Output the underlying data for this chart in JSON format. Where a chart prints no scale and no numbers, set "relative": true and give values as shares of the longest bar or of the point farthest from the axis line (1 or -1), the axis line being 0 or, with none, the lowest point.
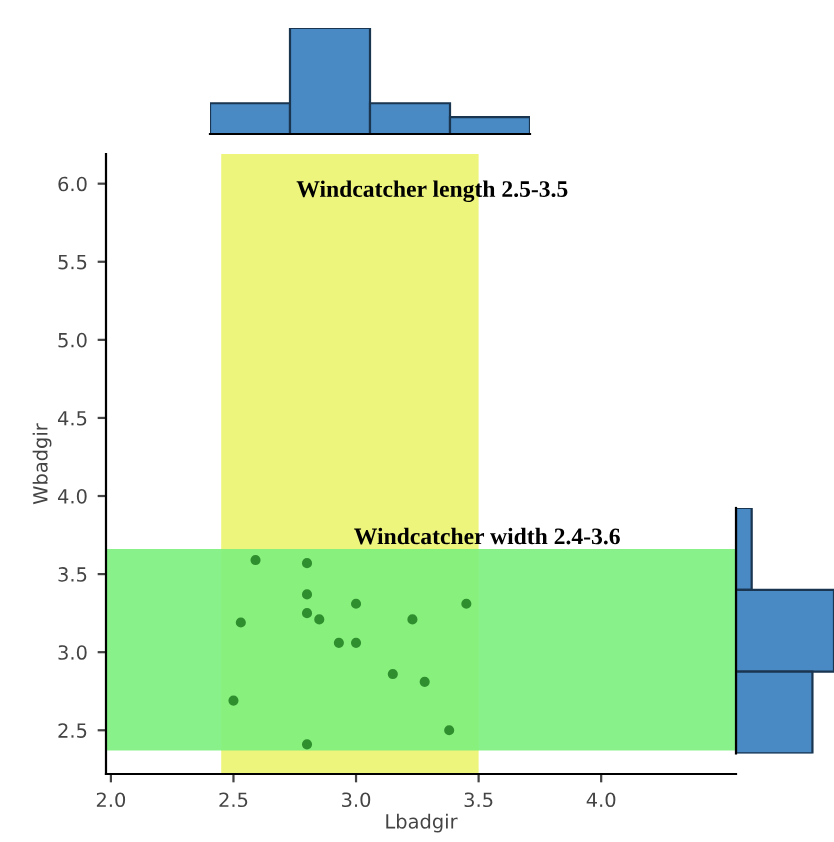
{
  "chart_data": [
    {
      "type": "scatter",
      "xlabel": "Lbadgir",
      "ylabel": "Wbadgir",
      "x": [
        2.59,
        2.8,
        2.8,
        3.0,
        3.45,
        2.8,
        2.85,
        2.53,
        3.23,
        2.93,
        3.0,
        3.15,
        3.28,
        2.5,
        3.38,
        2.8
      ],
      "values": [
        3.59,
        3.57,
        3.37,
        3.31,
        3.31,
        3.25,
        3.21,
        3.19,
        3.21,
        3.06,
        3.06,
        2.86,
        2.81,
        2.69,
        2.5,
        2.41
      ],
      "color": "#2f8f2f",
      "marker": "circle",
      "xlim": [
        1.98,
        4.55
      ],
      "ylim": [
        2.22,
        6.19
      ],
      "xticks": [
        {
          "value": 2.0,
          "label": "2.0"
        },
        {
          "value": 2.5,
          "label": "2.5"
        },
        {
          "value": 3.0,
          "label": "3.0"
        },
        {
          "value": 3.5,
          "label": "3.5"
        },
        {
          "value": 4.0,
          "label": "4.0"
        }
      ],
      "yticks": [
        {
          "value": 2.5,
          "label": "2.5"
        },
        {
          "value": 3.0,
          "label": "3.0"
        },
        {
          "value": 3.5,
          "label": "3.5"
        },
        {
          "value": 4.0,
          "label": "4.0"
        },
        {
          "value": 4.5,
          "label": "4.5"
        },
        {
          "value": 5.0,
          "label": "5.0"
        },
        {
          "value": 5.5,
          "label": "5.5"
        },
        {
          "value": 6.0,
          "label": "6.0"
        }
      ],
      "bands": [
        {
          "axis": "x",
          "from": 2.45,
          "to": 3.5,
          "color": "#eef57c",
          "label": "Windcatcher length 2.5-3.5"
        },
        {
          "axis": "y",
          "from": 2.37,
          "to": 3.66,
          "color": "#7cf07c",
          "label": "Windcatcher width 2.4-3.6"
        }
      ],
      "grid": false
    },
    {
      "type": "bar",
      "relative": true,
      "color": "#4a8ac4",
      "categories": [
        null,
        null,
        null,
        null
      ],
      "values": [
        0.29,
        1,
        0.29,
        0.16
      ]
    },
    {
      "type": "bar",
      "relative": true,
      "orientation": "horizontal",
      "color": "#4a8ac4",
      "categories": [
        null,
        null,
        null
      ],
      "values": [
        0.16,
        1,
        0.78
      ]
    }
  ]
}
